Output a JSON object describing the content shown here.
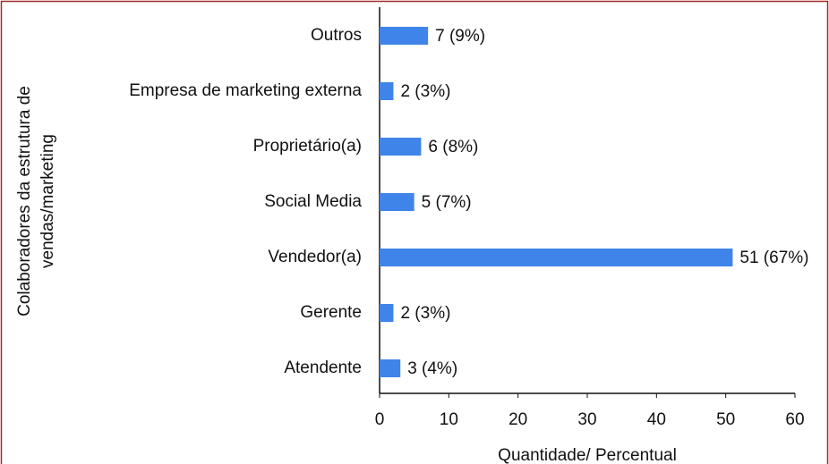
{
  "chart_data": {
    "type": "bar",
    "orientation": "horizontal",
    "ylabel": [
      "Colaboradores da estrutura de",
      "vendas/marketing"
    ],
    "xlabel": "Quantidade/ Percentual",
    "categories": [
      "Outros",
      "Empresa de marketing externa",
      "Proprietário(a)",
      "Social Media",
      "Vendedor(a)",
      "Gerente",
      "Atendente"
    ],
    "values": [
      7,
      2,
      6,
      5,
      51,
      2,
      3
    ],
    "value_labels": [
      "7 (9%)",
      "2 (3%)",
      "6 (8%)",
      "5 (7%)",
      "51 (67%)",
      "2 (3%)",
      "3 (4%)"
    ],
    "color": "#3f84e8",
    "xlim": [
      0,
      60
    ],
    "xticks": [
      0,
      10,
      20,
      30,
      40,
      50,
      60
    ],
    "grid": false
  }
}
